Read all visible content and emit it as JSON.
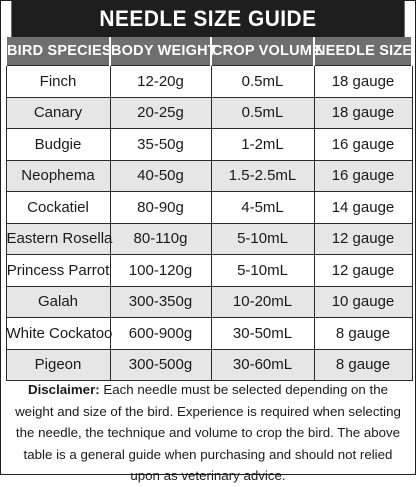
{
  "title": "NEEDLE SIZE GUIDE",
  "columns": [
    "BIRD SPECIES",
    "BODY WEIGHT",
    "CROP VOLUME",
    "NEEDLE SIZE"
  ],
  "rows": [
    [
      "Finch",
      "12-20g",
      "0.5mL",
      "18 gauge"
    ],
    [
      "Canary",
      "20-25g",
      "0.5mL",
      "18 gauge"
    ],
    [
      "Budgie",
      "35-50g",
      "1-2mL",
      "16 gauge"
    ],
    [
      "Neophema",
      "40-50g",
      "1.5-2.5mL",
      "16 gauge"
    ],
    [
      "Cockatiel",
      "80-90g",
      "4-5mL",
      "14 gauge"
    ],
    [
      "Eastern Rosella",
      "80-110g",
      "5-10mL",
      "12 gauge"
    ],
    [
      "Princess Parrot",
      "100-120g",
      "5-10mL",
      "12 gauge"
    ],
    [
      "Galah",
      "300-350g",
      "10-20mL",
      "10 gauge"
    ],
    [
      "White Cockatoo",
      "600-900g",
      "30-50mL",
      "8 gauge"
    ],
    [
      "Pigeon",
      "300-500g",
      "30-60mL",
      "8 gauge"
    ]
  ],
  "disclaimer": {
    "label": "Disclaimer:",
    "text": " Each needle must be selected depending on the weight and size of the bird. Experience is required when selecting the needle, the technique and volume to crop the bird. The above table is a general guide when purchasing and should not relied upon as veterinary advice."
  },
  "colors": {
    "title_bg": "#1e1e1e",
    "header_bg": "#6f6f6f",
    "stripe_bg": "#e6e6e6"
  }
}
